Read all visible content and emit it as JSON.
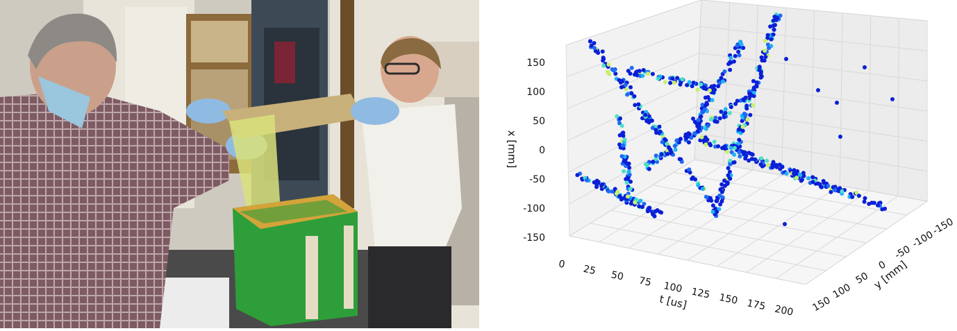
{
  "photo": {
    "subject": "lab-workers-handling-sheet-over-green-box"
  },
  "chart_data": {
    "type": "scatter3d",
    "axes": {
      "x": {
        "label": "x [mm]",
        "ticks": [
          "150",
          "100",
          "50",
          "0",
          "-50",
          "-100",
          "-150"
        ],
        "range": [
          -150,
          150
        ]
      },
      "y": {
        "label": "y [mm]",
        "ticks": [
          "-150",
          "-100",
          "-50",
          "0",
          "50",
          "100",
          "150"
        ],
        "range": [
          -150,
          150
        ]
      },
      "t": {
        "label": "t [us]",
        "ticks": [
          "0",
          "25",
          "50",
          "75",
          "100",
          "125",
          "150",
          "175",
          "200"
        ],
        "range": [
          0,
          200
        ]
      }
    },
    "grid": true,
    "colormap": [
      "#0a1fd6",
      "#1f6bf2",
      "#1fb4f5",
      "#4fe0c6",
      "#c8f06a"
    ]
  }
}
